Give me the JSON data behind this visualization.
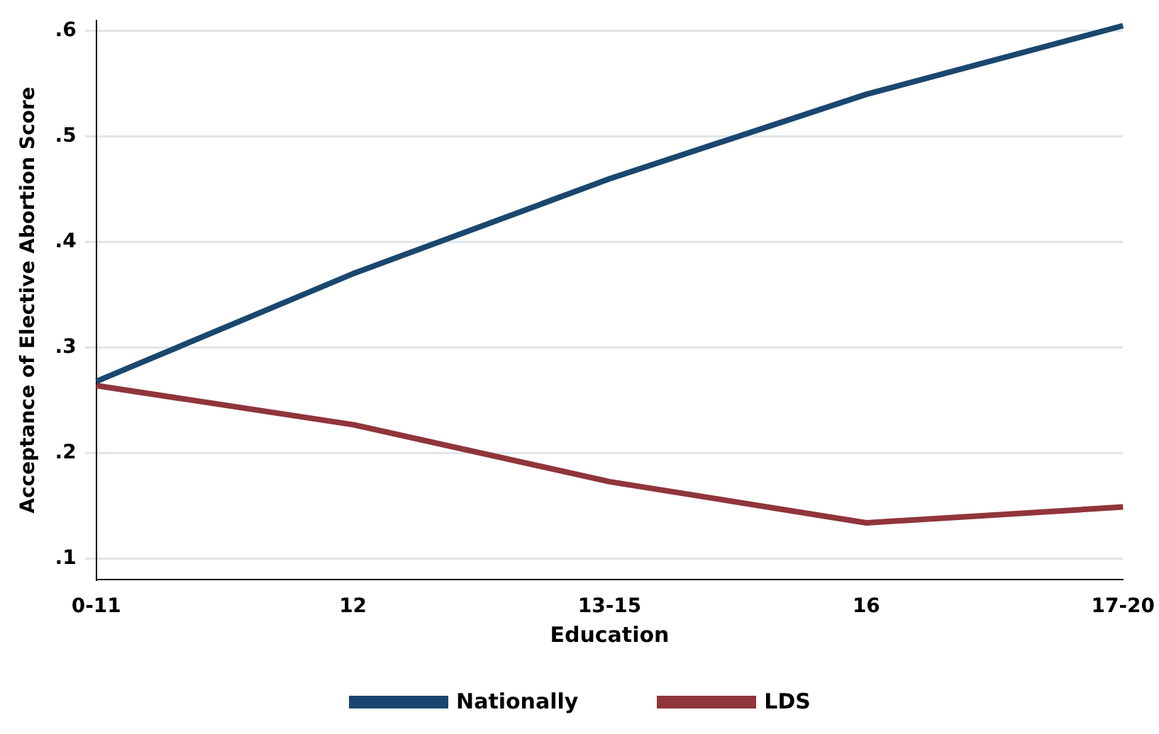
{
  "chart_data": {
    "type": "line",
    "xlabel": "Education",
    "ylabel": "Acceptance of Elective Abortion Score",
    "categories": [
      "0-11",
      "12",
      "13-15",
      "16",
      "17-20"
    ],
    "series": [
      {
        "name": "Nationally",
        "color": "#1a476f",
        "values": [
          0.268,
          0.37,
          0.46,
          0.54,
          0.605
        ]
      },
      {
        "name": "LDS",
        "color": "#90353b",
        "values": [
          0.264,
          0.227,
          0.173,
          0.134,
          0.149
        ]
      }
    ],
    "ylim": [
      0.08,
      0.61
    ],
    "yticks": [
      {
        "value": 0.1,
        "label": ".1"
      },
      {
        "value": 0.2,
        "label": ".2"
      },
      {
        "value": 0.3,
        "label": ".3"
      },
      {
        "value": 0.4,
        "label": ".4"
      },
      {
        "value": 0.5,
        "label": ".5"
      },
      {
        "value": 0.6,
        "label": ".6"
      }
    ],
    "grid": "y",
    "legend": "bottom",
    "marker": "none",
    "line_style": "solid"
  }
}
